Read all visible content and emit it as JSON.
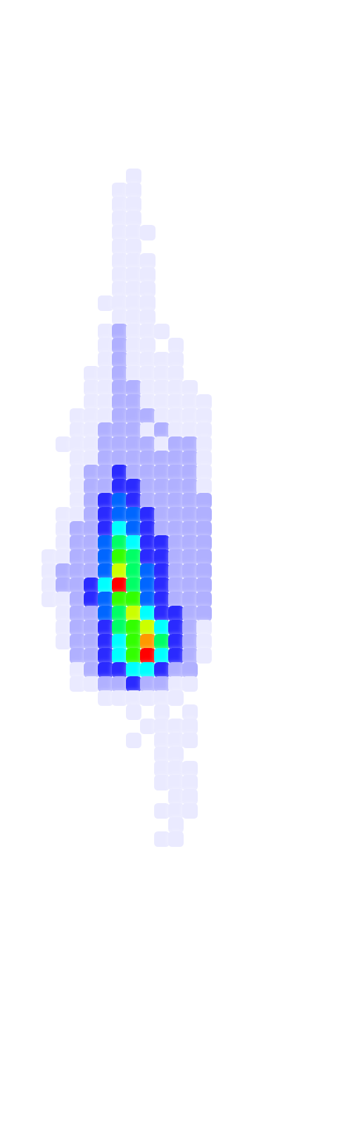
{
  "chart_data": {
    "type": "heatmap",
    "tick_labels": false,
    "grid": false,
    "xlim": [
      0,
      486
    ],
    "ylim": [
      0,
      1594
    ],
    "value_range": [
      0,
      10
    ],
    "cells": [
      [
        190,
        250,
        1
      ],
      [
        170,
        270,
        1
      ],
      [
        190,
        270,
        1
      ],
      [
        170,
        290,
        1
      ],
      [
        190,
        290,
        1
      ],
      [
        170,
        310,
        1
      ],
      [
        190,
        310,
        1
      ],
      [
        170,
        330,
        1
      ],
      [
        190,
        330,
        1
      ],
      [
        210,
        330,
        1
      ],
      [
        170,
        350,
        1
      ],
      [
        190,
        350,
        1
      ],
      [
        170,
        370,
        1
      ],
      [
        190,
        370,
        1
      ],
      [
        210,
        370,
        1
      ],
      [
        170,
        390,
        1
      ],
      [
        190,
        390,
        1
      ],
      [
        210,
        390,
        1
      ],
      [
        170,
        410,
        1
      ],
      [
        190,
        410,
        1
      ],
      [
        210,
        410,
        1
      ],
      [
        150,
        430,
        1
      ],
      [
        170,
        430,
        1
      ],
      [
        190,
        430,
        1
      ],
      [
        210,
        430,
        1
      ],
      [
        170,
        450,
        1
      ],
      [
        190,
        450,
        1
      ],
      [
        210,
        450,
        1
      ],
      [
        150,
        470,
        1
      ],
      [
        170,
        470,
        2
      ],
      [
        190,
        470,
        1
      ],
      [
        210,
        470,
        1
      ],
      [
        230,
        470,
        1
      ],
      [
        150,
        490,
        1
      ],
      [
        170,
        490,
        2
      ],
      [
        190,
        490,
        1
      ],
      [
        210,
        490,
        1
      ],
      [
        250,
        490,
        1
      ],
      [
        150,
        510,
        1
      ],
      [
        170,
        510,
        2
      ],
      [
        190,
        510,
        1
      ],
      [
        210,
        510,
        1
      ],
      [
        230,
        510,
        1
      ],
      [
        250,
        510,
        1
      ],
      [
        130,
        530,
        1
      ],
      [
        150,
        530,
        1
      ],
      [
        170,
        530,
        2
      ],
      [
        190,
        530,
        1
      ],
      [
        210,
        530,
        1
      ],
      [
        230,
        530,
        1
      ],
      [
        250,
        530,
        1
      ],
      [
        130,
        550,
        1
      ],
      [
        150,
        550,
        1
      ],
      [
        170,
        550,
        2
      ],
      [
        190,
        550,
        2
      ],
      [
        210,
        550,
        1
      ],
      [
        230,
        550,
        1
      ],
      [
        250,
        550,
        1
      ],
      [
        270,
        550,
        1
      ],
      [
        130,
        570,
        1
      ],
      [
        150,
        570,
        1
      ],
      [
        170,
        570,
        2
      ],
      [
        190,
        570,
        2
      ],
      [
        210,
        570,
        1
      ],
      [
        230,
        570,
        1
      ],
      [
        250,
        570,
        1
      ],
      [
        270,
        570,
        1
      ],
      [
        290,
        570,
        1
      ],
      [
        110,
        590,
        1
      ],
      [
        130,
        590,
        1
      ],
      [
        150,
        590,
        1
      ],
      [
        170,
        590,
        2
      ],
      [
        190,
        590,
        2
      ],
      [
        210,
        590,
        2
      ],
      [
        230,
        590,
        1
      ],
      [
        250,
        590,
        1
      ],
      [
        270,
        590,
        1
      ],
      [
        290,
        590,
        1
      ],
      [
        110,
        610,
        1
      ],
      [
        130,
        610,
        1
      ],
      [
        150,
        610,
        2
      ],
      [
        170,
        610,
        2
      ],
      [
        190,
        610,
        2
      ],
      [
        210,
        610,
        1
      ],
      [
        230,
        610,
        2
      ],
      [
        250,
        610,
        1
      ],
      [
        270,
        610,
        1
      ],
      [
        290,
        610,
        1
      ],
      [
        90,
        630,
        1
      ],
      [
        110,
        630,
        1
      ],
      [
        130,
        630,
        1
      ],
      [
        150,
        630,
        2
      ],
      [
        170,
        630,
        2
      ],
      [
        190,
        630,
        2
      ],
      [
        210,
        630,
        2
      ],
      [
        230,
        630,
        1
      ],
      [
        250,
        630,
        2
      ],
      [
        270,
        630,
        2
      ],
      [
        290,
        630,
        1
      ],
      [
        110,
        650,
        1
      ],
      [
        130,
        650,
        1
      ],
      [
        150,
        650,
        2
      ],
      [
        170,
        650,
        2
      ],
      [
        190,
        650,
        2
      ],
      [
        210,
        650,
        2
      ],
      [
        230,
        650,
        2
      ],
      [
        250,
        650,
        2
      ],
      [
        270,
        650,
        2
      ],
      [
        290,
        650,
        1
      ],
      [
        110,
        670,
        1
      ],
      [
        130,
        670,
        2
      ],
      [
        150,
        670,
        2
      ],
      [
        170,
        670,
        3
      ],
      [
        190,
        670,
        2
      ],
      [
        210,
        670,
        2
      ],
      [
        230,
        670,
        2
      ],
      [
        250,
        670,
        2
      ],
      [
        270,
        670,
        2
      ],
      [
        290,
        670,
        1
      ],
      [
        110,
        690,
        1
      ],
      [
        130,
        690,
        2
      ],
      [
        150,
        690,
        2
      ],
      [
        170,
        690,
        3
      ],
      [
        190,
        690,
        3
      ],
      [
        210,
        690,
        2
      ],
      [
        230,
        690,
        2
      ],
      [
        250,
        690,
        2
      ],
      [
        270,
        690,
        2
      ],
      [
        290,
        690,
        1
      ],
      [
        110,
        710,
        1
      ],
      [
        130,
        710,
        2
      ],
      [
        150,
        710,
        3
      ],
      [
        170,
        710,
        4
      ],
      [
        190,
        710,
        3
      ],
      [
        210,
        710,
        2
      ],
      [
        230,
        710,
        2
      ],
      [
        250,
        710,
        2
      ],
      [
        270,
        710,
        2
      ],
      [
        290,
        710,
        2
      ],
      [
        90,
        730,
        1
      ],
      [
        110,
        730,
        1
      ],
      [
        130,
        730,
        2
      ],
      [
        150,
        730,
        3
      ],
      [
        170,
        730,
        4
      ],
      [
        190,
        730,
        4
      ],
      [
        210,
        730,
        3
      ],
      [
        230,
        730,
        2
      ],
      [
        250,
        730,
        2
      ],
      [
        270,
        730,
        2
      ],
      [
        290,
        730,
        2
      ],
      [
        90,
        750,
        1
      ],
      [
        110,
        750,
        2
      ],
      [
        130,
        750,
        2
      ],
      [
        150,
        750,
        3
      ],
      [
        170,
        750,
        5
      ],
      [
        190,
        750,
        4
      ],
      [
        210,
        750,
        3
      ],
      [
        230,
        750,
        2
      ],
      [
        250,
        750,
        2
      ],
      [
        270,
        750,
        2
      ],
      [
        290,
        750,
        2
      ],
      [
        90,
        770,
        1
      ],
      [
        110,
        770,
        2
      ],
      [
        130,
        770,
        2
      ],
      [
        150,
        770,
        4
      ],
      [
        170,
        770,
        6
      ],
      [
        190,
        770,
        5
      ],
      [
        210,
        770,
        3
      ],
      [
        230,
        770,
        3
      ],
      [
        250,
        770,
        2
      ],
      [
        270,
        770,
        2
      ],
      [
        290,
        770,
        2
      ],
      [
        70,
        790,
        1
      ],
      [
        90,
        790,
        1
      ],
      [
        110,
        790,
        2
      ],
      [
        130,
        790,
        2
      ],
      [
        150,
        790,
        4
      ],
      [
        170,
        790,
        7
      ],
      [
        190,
        790,
        6
      ],
      [
        210,
        790,
        3
      ],
      [
        230,
        790,
        3
      ],
      [
        250,
        790,
        2
      ],
      [
        270,
        790,
        2
      ],
      [
        290,
        790,
        2
      ],
      [
        70,
        810,
        1
      ],
      [
        90,
        810,
        2
      ],
      [
        110,
        810,
        2
      ],
      [
        130,
        810,
        2
      ],
      [
        150,
        810,
        4
      ],
      [
        170,
        810,
        8
      ],
      [
        190,
        810,
        6
      ],
      [
        210,
        810,
        4
      ],
      [
        230,
        810,
        3
      ],
      [
        250,
        810,
        2
      ],
      [
        270,
        810,
        2
      ],
      [
        290,
        810,
        2
      ],
      [
        70,
        830,
        1
      ],
      [
        90,
        830,
        2
      ],
      [
        110,
        830,
        2
      ],
      [
        130,
        830,
        3
      ],
      [
        150,
        830,
        5
      ],
      [
        170,
        830,
        10
      ],
      [
        190,
        830,
        6
      ],
      [
        210,
        830,
        4
      ],
      [
        230,
        830,
        3
      ],
      [
        250,
        830,
        2
      ],
      [
        270,
        830,
        2
      ],
      [
        290,
        830,
        2
      ],
      [
        70,
        850,
        1
      ],
      [
        90,
        850,
        1
      ],
      [
        110,
        850,
        2
      ],
      [
        130,
        850,
        3
      ],
      [
        150,
        850,
        4
      ],
      [
        170,
        850,
        7
      ],
      [
        190,
        850,
        7
      ],
      [
        210,
        850,
        4
      ],
      [
        230,
        850,
        3
      ],
      [
        250,
        850,
        2
      ],
      [
        270,
        850,
        2
      ],
      [
        290,
        850,
        2
      ],
      [
        90,
        870,
        1
      ],
      [
        110,
        870,
        2
      ],
      [
        130,
        870,
        2
      ],
      [
        150,
        870,
        4
      ],
      [
        170,
        870,
        6
      ],
      [
        190,
        870,
        8
      ],
      [
        210,
        870,
        5
      ],
      [
        230,
        870,
        3
      ],
      [
        250,
        870,
        3
      ],
      [
        270,
        870,
        2
      ],
      [
        290,
        870,
        2
      ],
      [
        90,
        890,
        1
      ],
      [
        110,
        890,
        2
      ],
      [
        130,
        890,
        2
      ],
      [
        150,
        890,
        3
      ],
      [
        170,
        890,
        6
      ],
      [
        190,
        890,
        7
      ],
      [
        210,
        890,
        8
      ],
      [
        230,
        890,
        5
      ],
      [
        250,
        890,
        3
      ],
      [
        270,
        890,
        2
      ],
      [
        290,
        890,
        1
      ],
      [
        90,
        910,
        1
      ],
      [
        110,
        910,
        2
      ],
      [
        130,
        910,
        2
      ],
      [
        150,
        910,
        3
      ],
      [
        170,
        910,
        5
      ],
      [
        190,
        910,
        7
      ],
      [
        210,
        910,
        9
      ],
      [
        230,
        910,
        6
      ],
      [
        250,
        910,
        3
      ],
      [
        270,
        910,
        2
      ],
      [
        290,
        910,
        1
      ],
      [
        110,
        930,
        2
      ],
      [
        130,
        930,
        2
      ],
      [
        150,
        930,
        3
      ],
      [
        170,
        930,
        5
      ],
      [
        190,
        930,
        7
      ],
      [
        210,
        930,
        10
      ],
      [
        230,
        930,
        5
      ],
      [
        250,
        930,
        3
      ],
      [
        270,
        930,
        2
      ],
      [
        290,
        930,
        1
      ],
      [
        110,
        950,
        1
      ],
      [
        130,
        950,
        2
      ],
      [
        150,
        950,
        3
      ],
      [
        170,
        950,
        3
      ],
      [
        190,
        950,
        5
      ],
      [
        210,
        950,
        5
      ],
      [
        230,
        950,
        3
      ],
      [
        250,
        950,
        2
      ],
      [
        270,
        950,
        2
      ],
      [
        110,
        970,
        1
      ],
      [
        130,
        970,
        1
      ],
      [
        150,
        970,
        2
      ],
      [
        170,
        970,
        2
      ],
      [
        190,
        970,
        3
      ],
      [
        210,
        970,
        2
      ],
      [
        230,
        970,
        2
      ],
      [
        250,
        970,
        1
      ],
      [
        270,
        970,
        1
      ],
      [
        150,
        990,
        1
      ],
      [
        170,
        990,
        1
      ],
      [
        190,
        990,
        1
      ],
      [
        210,
        990,
        1
      ],
      [
        230,
        990,
        1
      ],
      [
        250,
        990,
        1
      ],
      [
        190,
        1010,
        1
      ],
      [
        230,
        1010,
        1
      ],
      [
        270,
        1010,
        1
      ],
      [
        210,
        1030,
        1
      ],
      [
        230,
        1030,
        1
      ],
      [
        250,
        1030,
        1
      ],
      [
        270,
        1030,
        1
      ],
      [
        190,
        1050,
        1
      ],
      [
        230,
        1050,
        1
      ],
      [
        250,
        1050,
        1
      ],
      [
        270,
        1050,
        1
      ],
      [
        230,
        1070,
        1
      ],
      [
        250,
        1070,
        1
      ],
      [
        230,
        1090,
        1
      ],
      [
        250,
        1090,
        1
      ],
      [
        270,
        1090,
        1
      ],
      [
        230,
        1110,
        1
      ],
      [
        250,
        1110,
        1
      ],
      [
        270,
        1110,
        1
      ],
      [
        250,
        1130,
        1
      ],
      [
        270,
        1130,
        1
      ],
      [
        230,
        1150,
        1
      ],
      [
        250,
        1150,
        1
      ],
      [
        270,
        1150,
        1
      ],
      [
        250,
        1170,
        1
      ],
      [
        230,
        1190,
        1
      ],
      [
        250,
        1190,
        1
      ]
    ]
  }
}
